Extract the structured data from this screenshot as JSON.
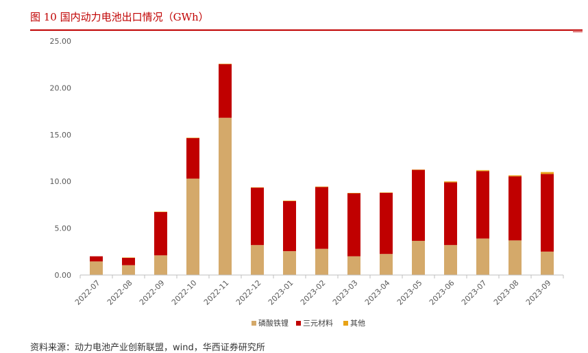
{
  "figure": {
    "title": "图 10 国内动力电池出口情况（GWh）",
    "source": "资料来源：动力电池产业创新联盟，wind，华西证券研究所"
  },
  "colors": {
    "title_red": "#c00000",
    "lfp": "#d4a96a",
    "ternary": "#c00000",
    "other": "#e8a317",
    "axis": "#bfbfbf"
  },
  "chart_data": {
    "type": "bar",
    "stacked": true,
    "title": "图 10 国内动力电池出口情况（GWh）",
    "xlabel": "",
    "ylabel": "",
    "ylim": [
      0,
      25
    ],
    "yticks": [
      "0.00",
      "5.00",
      "10.00",
      "15.00",
      "20.00",
      "25.00"
    ],
    "grid": false,
    "legend_position": "bottom",
    "categories": [
      "2022-07",
      "2022-08",
      "2022-09",
      "2022-10",
      "2022-11",
      "2022-12",
      "2023-01",
      "2023-02",
      "2023-03",
      "2023-04",
      "2023-05",
      "2023-06",
      "2023-07",
      "2023-08",
      "2023-09"
    ],
    "series": [
      {
        "name": "磷酸铁锂",
        "color": "#d4a96a",
        "values": [
          1.45,
          1.05,
          2.1,
          10.3,
          16.8,
          3.2,
          2.55,
          2.8,
          2.0,
          2.25,
          3.65,
          3.2,
          3.9,
          3.7,
          2.5
        ]
      },
      {
        "name": "三元材料",
        "color": "#c00000",
        "values": [
          0.55,
          0.8,
          4.65,
          4.35,
          5.75,
          6.15,
          5.35,
          6.6,
          6.75,
          6.55,
          7.6,
          6.7,
          7.2,
          6.85,
          8.3
        ]
      },
      {
        "name": "其他",
        "color": "#e8a317",
        "values": [
          0.0,
          0.02,
          0.02,
          0.02,
          0.02,
          0.02,
          0.05,
          0.05,
          0.02,
          0.02,
          0.02,
          0.1,
          0.1,
          0.1,
          0.2
        ]
      }
    ]
  }
}
